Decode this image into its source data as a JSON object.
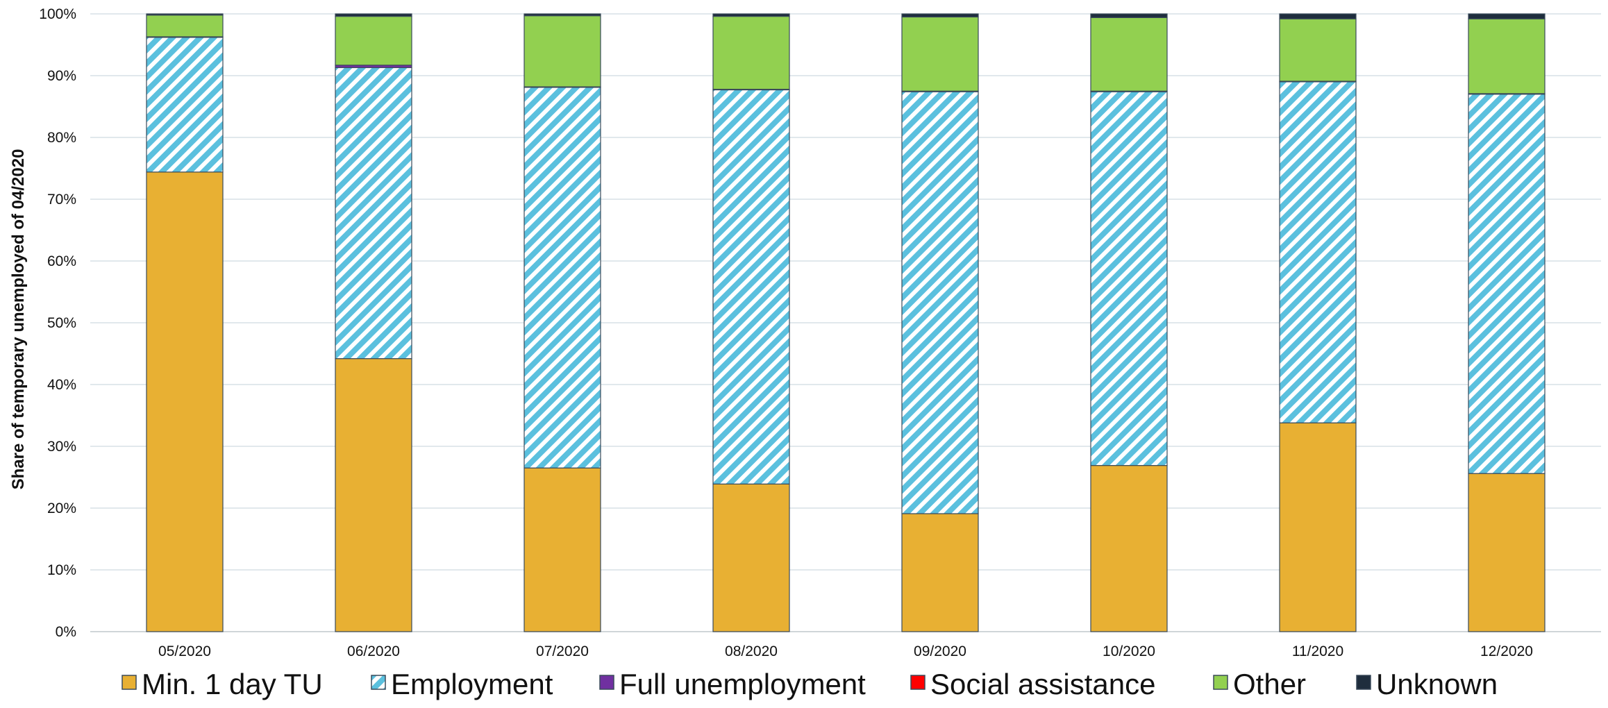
{
  "chart_data": {
    "type": "bar",
    "stacked": true,
    "title": "",
    "xlabel": "",
    "ylabel": "Share of temporary unemployed of 04/2020",
    "ylim": [
      0,
      100
    ],
    "y_ticks": [
      "0%",
      "10%",
      "20%",
      "30%",
      "40%",
      "50%",
      "60%",
      "70%",
      "80%",
      "90%",
      "100%"
    ],
    "grid": true,
    "legend_position": "bottom",
    "categories": [
      "05/2020",
      "06/2020",
      "07/2020",
      "08/2020",
      "09/2020",
      "10/2020",
      "11/2020",
      "12/2020"
    ],
    "series": [
      {
        "name": "Min. 1 day TU",
        "color": "#E8B033",
        "pattern": "solid",
        "values": [
          74.4,
          44.2,
          26.5,
          23.9,
          19.1,
          26.9,
          33.8,
          25.6
        ]
      },
      {
        "name": "Employment",
        "color": "#5BC0DE",
        "pattern": "diagonal-stripes",
        "values": [
          21.8,
          47.1,
          61.6,
          63.8,
          68.3,
          60.5,
          55.2,
          61.4
        ]
      },
      {
        "name": "Full unemployment",
        "color": "#7030A0",
        "pattern": "solid",
        "values": [
          0.1,
          0.4,
          0.1,
          0.1,
          0.1,
          0.1,
          0.1,
          0.1
        ]
      },
      {
        "name": "Social assistance",
        "color": "#FF0000",
        "pattern": "solid",
        "values": [
          0.0,
          0.0,
          0.0,
          0.0,
          0.0,
          0.0,
          0.0,
          0.0
        ]
      },
      {
        "name": "Other",
        "color": "#92D050",
        "pattern": "solid",
        "values": [
          3.5,
          7.9,
          11.5,
          11.8,
          12.0,
          11.9,
          10.1,
          12.1
        ]
      },
      {
        "name": "Unknown",
        "color": "#1F2D3D",
        "pattern": "solid",
        "values": [
          0.2,
          0.4,
          0.3,
          0.4,
          0.5,
          0.6,
          0.8,
          0.8
        ]
      }
    ]
  }
}
